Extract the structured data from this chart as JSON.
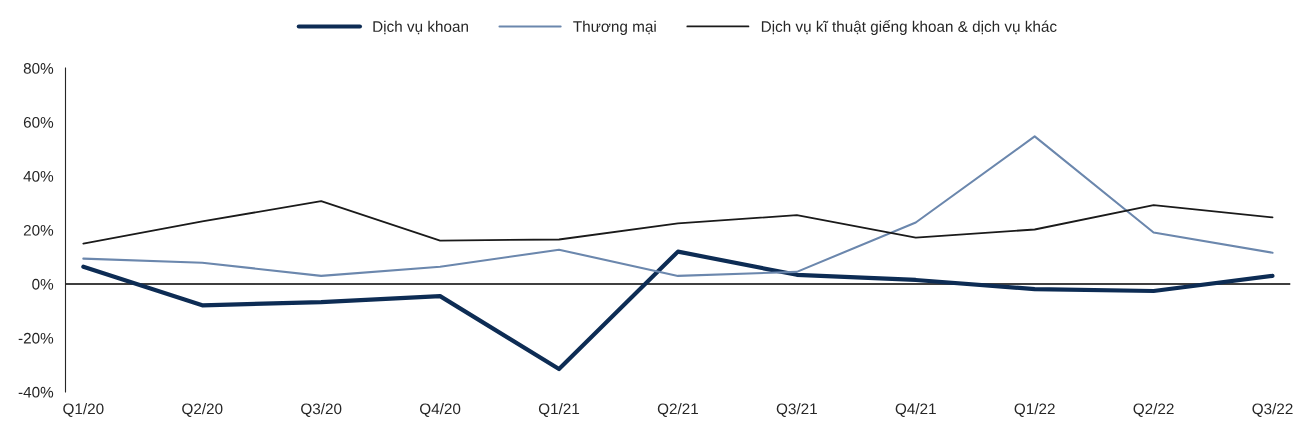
{
  "chart_data": {
    "type": "line",
    "categories": [
      "Q1/20",
      "Q2/20",
      "Q3/20",
      "Q4/20",
      "Q1/21",
      "Q2/21",
      "Q3/21",
      "Q4/21",
      "Q1/22",
      "Q2/22",
      "Q3/22"
    ],
    "series": [
      {
        "name": "Dịch vụ khoan",
        "color": "#0d2c54",
        "values": [
          6.4,
          -7.9,
          -6.7,
          -4.5,
          -31.5,
          12,
          3.4,
          1.5,
          -1.9,
          -2.6,
          3
        ]
      },
      {
        "name": "Thương mại",
        "color": "#6b87ad",
        "values": [
          9.4,
          7.9,
          3,
          6.4,
          12.7,
          3,
          4.5,
          22.8,
          54.7,
          19.1,
          11.6
        ]
      },
      {
        "name": "Dịch vụ kĩ thuật giếng khoan & dịch vụ khác",
        "color": "#1a1a1a",
        "values": [
          15,
          23.2,
          30.7,
          16.1,
          16.5,
          22.5,
          25.5,
          17.2,
          20.2,
          29.2,
          24.7
        ]
      }
    ],
    "ylim": [
      -40,
      80
    ],
    "yticks": [
      {
        "value": -40,
        "label": "-40%"
      },
      {
        "value": -20,
        "label": "-20%"
      },
      {
        "value": 0,
        "label": "0%"
      },
      {
        "value": 20,
        "label": "20%"
      },
      {
        "value": 40,
        "label": "40%"
      },
      {
        "value": 60,
        "label": "60%"
      },
      {
        "value": 80,
        "label": "80%"
      }
    ],
    "grid": false,
    "ref_lines": [
      {
        "axis": "y",
        "value": 0,
        "color": "#000000",
        "line_style": "solid"
      }
    ],
    "legend": "top",
    "marker": "none",
    "line_style": "solid"
  }
}
